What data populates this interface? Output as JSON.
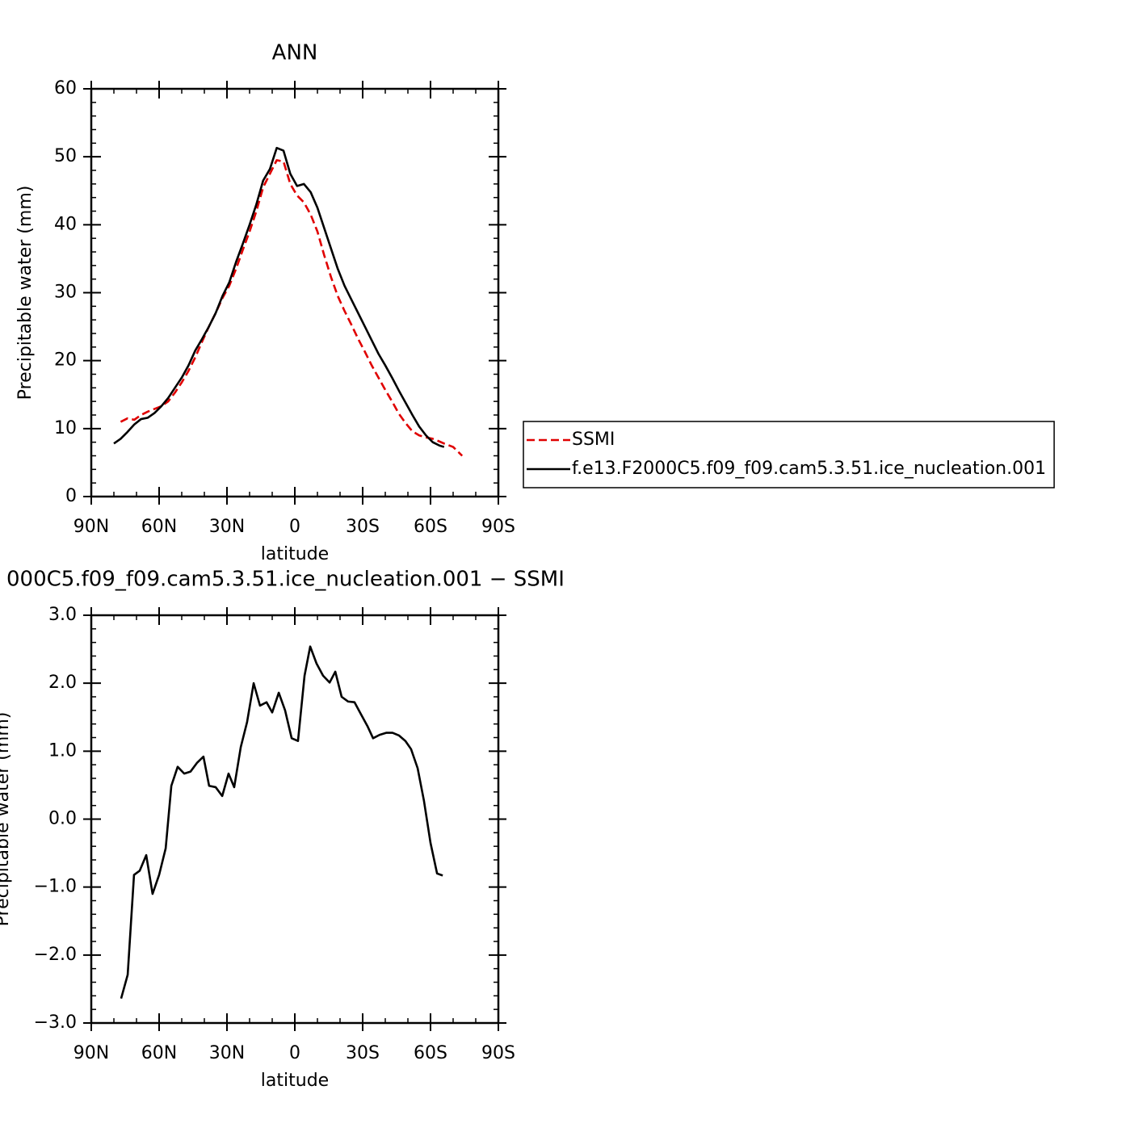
{
  "chart_data": [
    {
      "type": "line",
      "title": "ANN",
      "x_label": "latitude",
      "y_label": "Precipitable water (mm)",
      "x": [
        80,
        77,
        74,
        71,
        68,
        65,
        62,
        59,
        56,
        53,
        50,
        47,
        44,
        41,
        38,
        35,
        32,
        29,
        26,
        23,
        20,
        17,
        14,
        11,
        8,
        5,
        2,
        -1,
        -4,
        -7,
        -10,
        -13,
        -16,
        -19,
        -22,
        -25,
        -28,
        -31,
        -34,
        -37,
        -40,
        -43,
        -46,
        -49,
        -52,
        -55,
        -58,
        -61,
        -64,
        -66,
        -70,
        -74
      ],
      "series": [
        {
          "name": "SSMI",
          "color": "#e00000",
          "dashed": true,
          "values": [
            null,
            11,
            11.5,
            11.3,
            12,
            12.5,
            12.9,
            13.3,
            14,
            15.3,
            16.8,
            18.5,
            20.5,
            22.8,
            25,
            27,
            29.2,
            31,
            33.5,
            36.3,
            39,
            42,
            45.5,
            47.5,
            49.5,
            49.3,
            46,
            44.3,
            43.3,
            41.5,
            39,
            35.5,
            32.3,
            29.5,
            27.3,
            25.3,
            23.2,
            21.3,
            19.3,
            17.5,
            15.7,
            14,
            12.2,
            10.8,
            9.6,
            9,
            8.7,
            8.5,
            8.1,
            7.8,
            7.3,
            6
          ]
        },
        {
          "name": "f.e13.F2000C5.f09_f09.cam5.3.51.ice_nucleation.001",
          "color": "#000000",
          "dashed": false,
          "values": [
            7.8,
            8.5,
            9.5,
            10.6,
            11.4,
            11.6,
            12.3,
            13.3,
            14.5,
            16,
            17.5,
            19.3,
            21.5,
            23.2,
            25,
            27,
            29.5,
            31.5,
            34.5,
            37.2,
            40,
            43,
            46.5,
            48.2,
            51.3,
            50.9,
            47.5,
            45.7,
            46,
            44.8,
            42.5,
            39.5,
            36.5,
            33.5,
            31,
            29,
            27,
            25,
            23,
            21,
            19.3,
            17.5,
            15.6,
            13.8,
            12,
            10.3,
            9,
            8,
            7.5,
            7.3,
            null,
            null
          ]
        }
      ],
      "xlim": [
        90,
        -90
      ],
      "xticks": [
        {
          "value": 90,
          "label": "90N"
        },
        {
          "value": 60,
          "label": "60N"
        },
        {
          "value": 30,
          "label": "30N"
        },
        0,
        {
          "value": -30,
          "label": "30S"
        },
        {
          "value": -60,
          "label": "60S"
        },
        {
          "value": -90,
          "label": "90S"
        }
      ],
      "ylim": [
        0,
        60
      ],
      "yticks": [
        0,
        10,
        20,
        30,
        40,
        50,
        60
      ],
      "legend": "right"
    },
    {
      "type": "line",
      "title": "000C5.f09_f09.cam5.3.51.ice_nucleation.001 − SSMI",
      "x_label": "latitude",
      "y_label": "Precipitable water (mm)",
      "x": [
        76.8,
        73.9,
        71.1,
        68.6,
        65.7,
        62.9,
        60,
        57.1,
        54.6,
        51.8,
        48.9,
        46.1,
        43.2,
        40.4,
        37.9,
        35,
        32.1,
        29.3,
        26.8,
        23.9,
        21.1,
        18.2,
        15.4,
        12.5,
        10,
        7.1,
        4.3,
        1.4,
        -1.4,
        -4.3,
        -6.8,
        -9.6,
        -12.5,
        -15.4,
        -17.9,
        -20.7,
        -23.6,
        -26.4,
        -29.3,
        -32.1,
        -34.6,
        -37.5,
        -40.4,
        -43.2,
        -46.1,
        -48.9,
        -51.4,
        -54.3,
        -57.1,
        -60,
        -62.9,
        -65.4
      ],
      "series": [
        {
          "color": "#000000",
          "values": [
            -2.64,
            -2.29,
            -0.82,
            -0.76,
            -0.53,
            -1.1,
            -0.82,
            -0.43,
            0.49,
            0.77,
            0.67,
            0.7,
            0.83,
            0.92,
            0.49,
            0.47,
            0.34,
            0.67,
            0.47,
            1.06,
            1.43,
            2.0,
            1.67,
            1.72,
            1.57,
            1.86,
            1.6,
            1.19,
            1.15,
            2.11,
            2.54,
            2.29,
            2.11,
            2.01,
            2.17,
            1.8,
            1.73,
            1.72,
            1.54,
            1.37,
            1.19,
            1.24,
            1.27,
            1.27,
            1.23,
            1.15,
            1.03,
            0.75,
            0.27,
            -0.35,
            -0.8,
            -0.83
          ]
        }
      ],
      "xlim": [
        90,
        -90
      ],
      "xticks": [
        {
          "value": 90,
          "label": "90N"
        },
        {
          "value": 60,
          "label": "60N"
        },
        {
          "value": 30,
          "label": "30N"
        },
        0,
        {
          "value": -30,
          "label": "30S"
        },
        {
          "value": -60,
          "label": "60S"
        },
        {
          "value": -90,
          "label": "90S"
        }
      ],
      "ylim": [
        -3,
        3
      ],
      "yticks": [
        {
          "value": -3,
          "label": "−3.0"
        },
        {
          "value": -2,
          "label": "−2.0"
        },
        {
          "value": -1,
          "label": "−1.0"
        },
        {
          "value": 0,
          "label": "0.0"
        },
        {
          "value": 1,
          "label": "1.0"
        },
        {
          "value": 2,
          "label": "2.0"
        },
        {
          "value": 3,
          "label": "3.0"
        }
      ]
    }
  ]
}
